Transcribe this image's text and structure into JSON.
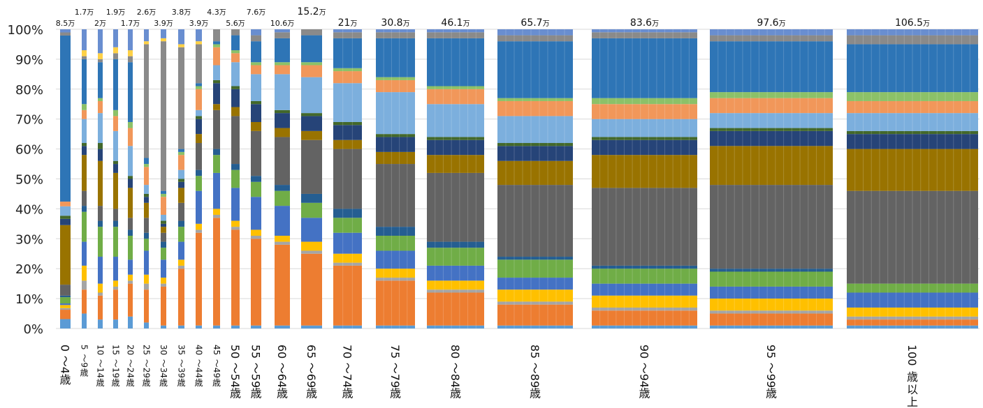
{
  "chart_data": {
    "type": "bar",
    "stacked": "percent",
    "variable_width": true,
    "ylim": [
      0,
      100
    ],
    "y_tick_labels": [
      "0%",
      "10%",
      "20%",
      "30%",
      "40%",
      "50%",
      "60%",
      "70%",
      "80%",
      "90%",
      "100%"
    ],
    "grid": true,
    "legend": "none",
    "categories": [
      "0～4歳",
      "5～9歳",
      "10～14歳",
      "15～19歳",
      "20～24歳",
      "25～29歳",
      "30～34歳",
      "35～39歳",
      "40～44歳",
      "45～49歳",
      "50～54歳",
      "55～59歳",
      "60～64歳",
      "65～69歳",
      "70～74歳",
      "75～79歳",
      "80～84歳",
      "85～89歳",
      "90～94歳",
      "95～99歳",
      "100歳以上"
    ],
    "age_labels": [
      {
        "num": "0",
        "rest": "～4",
        "tail": "歳"
      },
      {
        "num": "5",
        "rest": "～9",
        "tail": "歳"
      },
      {
        "num": "10",
        "rest": "～14",
        "tail": "歳"
      },
      {
        "num": "15",
        "rest": "～19",
        "tail": "歳"
      },
      {
        "num": "20",
        "rest": "～24",
        "tail": "歳"
      },
      {
        "num": "25",
        "rest": "～29",
        "tail": "歳"
      },
      {
        "num": "30",
        "rest": "～34",
        "tail": "歳"
      },
      {
        "num": "35",
        "rest": "～39",
        "tail": "歳"
      },
      {
        "num": "40",
        "rest": "～44",
        "tail": "歳"
      },
      {
        "num": "45",
        "rest": "～49",
        "tail": "歳"
      },
      {
        "num": "50",
        "rest": "～54",
        "tail": "歳"
      },
      {
        "num": "55",
        "rest": "～59",
        "tail": "歳"
      },
      {
        "num": "60",
        "rest": "～64",
        "tail": "歳"
      },
      {
        "num": "65",
        "rest": "～69",
        "tail": "歳"
      },
      {
        "num": "70",
        "rest": "～74",
        "tail": "歳"
      },
      {
        "num": "75",
        "rest": "～79",
        "tail": "歳"
      },
      {
        "num": "80",
        "rest": "～84",
        "tail": "歳"
      },
      {
        "num": "85",
        "rest": "～89",
        "tail": "歳"
      },
      {
        "num": "90",
        "rest": "～94",
        "tail": "歳"
      },
      {
        "num": "95",
        "rest": "～99",
        "tail": "歳"
      },
      {
        "num": "100",
        "rest": "",
        "tail": "歳以上"
      }
    ],
    "totals": [
      {
        "value": "8.5",
        "unit": "万",
        "row": "low"
      },
      {
        "value": "1.7",
        "unit": "万",
        "row": "high"
      },
      {
        "value": "2",
        "unit": "万",
        "row": "low"
      },
      {
        "value": "1.9",
        "unit": "万",
        "row": "high"
      },
      {
        "value": "1.7",
        "unit": "万",
        "row": "low"
      },
      {
        "value": "2.6",
        "unit": "万",
        "row": "high"
      },
      {
        "value": "3.9",
        "unit": "万",
        "row": "low"
      },
      {
        "value": "3.8",
        "unit": "万",
        "row": "high"
      },
      {
        "value": "3.9",
        "unit": "万",
        "row": "low"
      },
      {
        "value": "4.3",
        "unit": "万",
        "row": "high"
      },
      {
        "value": "5.6",
        "unit": "万",
        "row": "low"
      },
      {
        "value": "7.6",
        "unit": "万",
        "row": "high"
      },
      {
        "value": "10.6",
        "unit": "万",
        "row": "low"
      },
      {
        "value": "15.2",
        "unit": "万",
        "row": "high"
      },
      {
        "value": "21",
        "unit": "万",
        "row": "low"
      },
      {
        "value": "30.8",
        "unit": "万",
        "row": "low"
      },
      {
        "value": "46.1",
        "unit": "万",
        "row": "low"
      },
      {
        "value": "65.7",
        "unit": "万",
        "row": "low"
      },
      {
        "value": "83.6",
        "unit": "万",
        "row": "low"
      },
      {
        "value": "97.6",
        "unit": "万",
        "row": "low"
      },
      {
        "value": "106.5",
        "unit": "万",
        "row": "low"
      }
    ],
    "segment_colors": [
      "#5b9bd5",
      "#ed7d31",
      "#a5a5a5",
      "#ffc000",
      "#4472c4",
      "#70ad47",
      "#255e91",
      "#636363",
      "#997300",
      "#264478",
      "#43682b",
      "#7cafdd",
      "#f1975a",
      "#8cc168",
      "#2e75b6",
      "#8a8a8a",
      "#ffd146",
      "#698ed0"
    ],
    "series": [
      {
        "age": "0～4歳",
        "segments": [
          3,
          3,
          0.5,
          1,
          0.5,
          2,
          0.5,
          3.5,
          19,
          2,
          1,
          3,
          1.5,
          0,
          53,
          1,
          0,
          1
        ]
      },
      {
        "age": "5～9歳",
        "segments": [
          5,
          8,
          3,
          5,
          8,
          10,
          2,
          5,
          12,
          3,
          1,
          8,
          3,
          2,
          15,
          1,
          2,
          7
        ]
      },
      {
        "age": "10～14歳",
        "segments": [
          3,
          8,
          1,
          3,
          9,
          10,
          2,
          5,
          15,
          4,
          2,
          10,
          4,
          1,
          12,
          1,
          2,
          8
        ]
      },
      {
        "age": "15～19歳",
        "segments": [
          3,
          10,
          1,
          2,
          8,
          10,
          2,
          4,
          12,
          3,
          1,
          10,
          5,
          2,
          17,
          2,
          2,
          6
        ]
      },
      {
        "age": "20～24歳",
        "segments": [
          4,
          11,
          1,
          2,
          5,
          8,
          2,
          4,
          10,
          3,
          1,
          10,
          6,
          2,
          20,
          2,
          2,
          7
        ]
      },
      {
        "age": "25～29歳",
        "segments": [
          2,
          11,
          2,
          3,
          8,
          4,
          2,
          5,
          5,
          2,
          1,
          3,
          6,
          1,
          2,
          38,
          1,
          4
        ]
      },
      {
        "age": "30～34歳",
        "segments": [
          1,
          13,
          1,
          2,
          6,
          4,
          2,
          3,
          2,
          1,
          1,
          2,
          6,
          1,
          1,
          50,
          1,
          3
        ]
      },
      {
        "age": "35～39歳",
        "segments": [
          1,
          19,
          1,
          2,
          6,
          5,
          2,
          6,
          5,
          2,
          1,
          3,
          5,
          1,
          1,
          34,
          1,
          5
        ]
      },
      {
        "age": "40～44歳",
        "segments": [
          1,
          31,
          1,
          2,
          11,
          5,
          2,
          9,
          3,
          5,
          1,
          2,
          7,
          1,
          1,
          13,
          1,
          4
        ]
      },
      {
        "age": "45～49歳",
        "segments": [
          1,
          36,
          1,
          2,
          12,
          6,
          2,
          13,
          2,
          7,
          1,
          5,
          6,
          1,
          1,
          4,
          0,
          0
        ]
      },
      {
        "age": "50～54歳",
        "segments": [
          1,
          32,
          1,
          2,
          11,
          6,
          2,
          16,
          3,
          6,
          1,
          8,
          3,
          1,
          5,
          2,
          0,
          0
        ]
      },
      {
        "age": "55～59歳",
        "segments": [
          1,
          29,
          1,
          2,
          11,
          5,
          2,
          15,
          3,
          6,
          1,
          9,
          3,
          1,
          7,
          2,
          0,
          2
        ]
      },
      {
        "age": "60～64歳",
        "segments": [
          1,
          27,
          1,
          2,
          10,
          5,
          2,
          16,
          3,
          5,
          1,
          12,
          3,
          1,
          8,
          2,
          0,
          1
        ]
      },
      {
        "age": "65～69歳",
        "segments": [
          1,
          24,
          1,
          3,
          8,
          5,
          3,
          18,
          3,
          5,
          1,
          12,
          4,
          1,
          9,
          2,
          0,
          0
        ]
      },
      {
        "age": "70～74歳",
        "segments": [
          1,
          20,
          1,
          3,
          7,
          5,
          3,
          20,
          3,
          5,
          1,
          13,
          4,
          1,
          10,
          2,
          0,
          1
        ]
      },
      {
        "age": "75～79歳",
        "segments": [
          1,
          15,
          1,
          3,
          6,
          5,
          3,
          21,
          4,
          5,
          1,
          14,
          4,
          1,
          13,
          2,
          0,
          1
        ]
      },
      {
        "age": "80～84歳",
        "segments": [
          1,
          11,
          1,
          3,
          5,
          6,
          2,
          23,
          6,
          5,
          1,
          11,
          5,
          1,
          16,
          2,
          0,
          1
        ]
      },
      {
        "age": "85～89歳",
        "segments": [
          1,
          7,
          1,
          4,
          4,
          6,
          1,
          24,
          8,
          5,
          1,
          9,
          5,
          1,
          19,
          2,
          0,
          2
        ]
      },
      {
        "age": "90～94歳",
        "segments": [
          1,
          5,
          1,
          4,
          4,
          5,
          1,
          26,
          11,
          5,
          1,
          6,
          5,
          2,
          20,
          2,
          0,
          1
        ]
      },
      {
        "age": "95～99歳",
        "segments": [
          1,
          4,
          1,
          4,
          4,
          5,
          1,
          28,
          13,
          5,
          1,
          5,
          5,
          2,
          17,
          2,
          0,
          2
        ]
      },
      {
        "age": "100歳以上",
        "segments": [
          1,
          2,
          1,
          3,
          5,
          3,
          0,
          31,
          14,
          5,
          1,
          6,
          4,
          3,
          16,
          3,
          0,
          2
        ]
      }
    ]
  }
}
